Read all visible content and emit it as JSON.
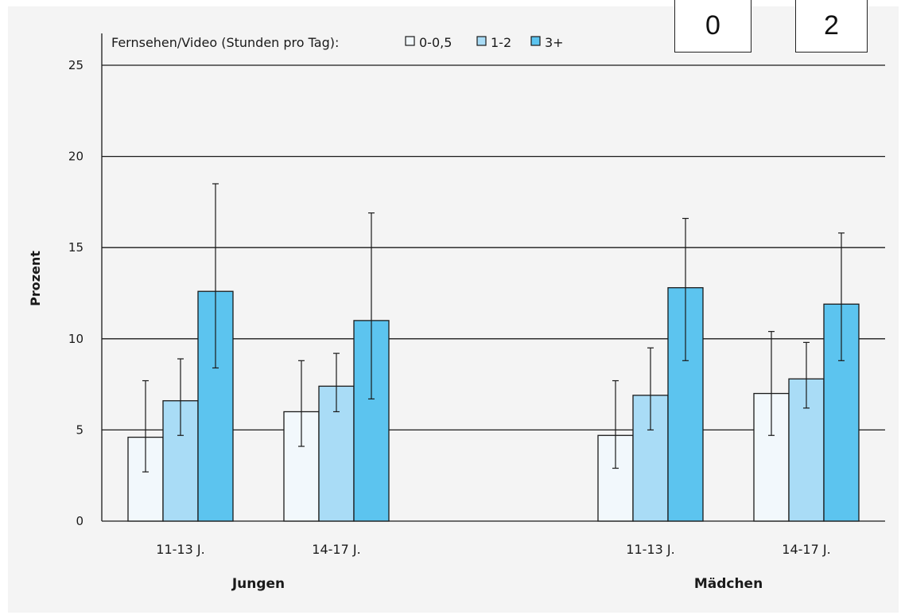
{
  "chart_data": {
    "type": "bar",
    "title": "",
    "ylabel": "Prozent",
    "ylim": [
      0,
      25
    ],
    "yticks": [
      0,
      5,
      10,
      15,
      20,
      25
    ],
    "grid": true,
    "legend": {
      "title": "Fernsehen/Video (Stunden pro Tag):",
      "placement": "top-left"
    },
    "groups": [
      {
        "label": "Jungen",
        "categories": [
          "11-13 J.",
          "14-17 J."
        ]
      },
      {
        "label": "Mädchen",
        "categories": [
          "11-13 J.",
          "14-17 J."
        ]
      }
    ],
    "series": [
      {
        "name": "0-0,5",
        "color": "#f2f8fc",
        "values": [
          4.6,
          6.0,
          4.7,
          7.0
        ],
        "ci_low": [
          2.7,
          4.1,
          2.9,
          4.7
        ],
        "ci_high": [
          7.7,
          8.8,
          7.7,
          10.4
        ]
      },
      {
        "name": "1-2",
        "color": "#a9dcf6",
        "values": [
          6.6,
          7.4,
          6.9,
          7.8
        ],
        "ci_low": [
          4.7,
          6.0,
          5.0,
          6.2
        ],
        "ci_high": [
          8.9,
          9.2,
          9.5,
          9.8
        ]
      },
      {
        "name": "3+",
        "color": "#5cc4ef",
        "values": [
          12.6,
          11.0,
          12.8,
          11.9
        ],
        "ci_low": [
          8.4,
          6.7,
          8.8,
          8.8
        ],
        "ci_high": [
          18.5,
          16.9,
          16.6,
          15.8
        ]
      }
    ]
  },
  "overlay_boxes": [
    "0",
    "2"
  ],
  "colors": {
    "plot_background": "#f4f4f4",
    "grid": "#1a1a1a"
  }
}
